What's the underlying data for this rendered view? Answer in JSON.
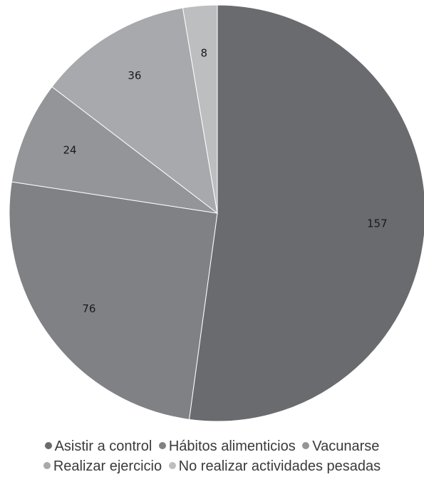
{
  "chart_data": {
    "type": "pie",
    "title": "",
    "slices": [
      {
        "label": "Asistir a control",
        "value": 157,
        "color": "#6a6b6e"
      },
      {
        "label": "Hábitos alimenticios",
        "value": 76,
        "color": "#808184"
      },
      {
        "label": "Vacunarse",
        "value": 24,
        "color": "#939598"
      },
      {
        "label": "Realizar ejercicio",
        "value": 36,
        "color": "#a7a9ac"
      },
      {
        "label": "No realizar actividades pesadas",
        "value": 8,
        "color": "#bcbec0"
      }
    ],
    "start_angle": "12 o'clock",
    "direction": "clockwise",
    "legend_position": "bottom"
  }
}
